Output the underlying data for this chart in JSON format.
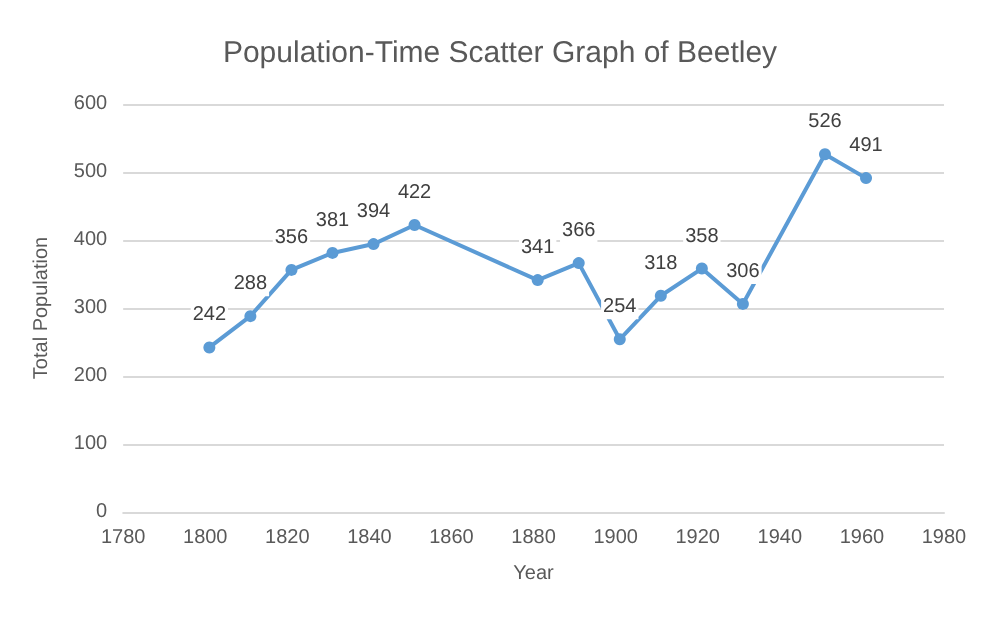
{
  "chart_data": {
    "type": "line",
    "title": "Population-Time Scatter Graph of Beetley",
    "xlabel": "Year",
    "ylabel": "Total Population",
    "x": [
      1801,
      1811,
      1821,
      1831,
      1841,
      1851,
      1881,
      1891,
      1901,
      1911,
      1921,
      1931,
      1951,
      1961
    ],
    "series": [
      {
        "color": "#5b9bd5",
        "values": [
          242,
          288,
          356,
          381,
          394,
          422,
          341,
          366,
          254,
          318,
          358,
          306,
          526,
          491
        ]
      }
    ],
    "xlim": [
      1780,
      1980
    ],
    "xticks": [
      1780,
      1800,
      1820,
      1840,
      1860,
      1880,
      1900,
      1920,
      1940,
      1960,
      1980
    ],
    "ylim": [
      0,
      600
    ],
    "yticks": [
      0,
      100,
      200,
      300,
      400,
      500,
      600
    ],
    "grid": "y",
    "marker": "circle",
    "line_style": "solid",
    "data_labels": true
  }
}
